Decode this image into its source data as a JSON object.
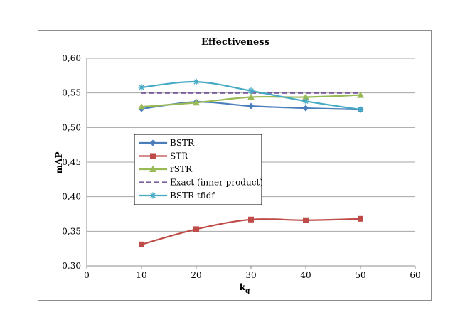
{
  "chart_data": {
    "type": "line",
    "title": "Effectiveness",
    "xlabel": "k",
    "xlabel_sub": "q",
    "ylabel": "mAP",
    "xlim": [
      0,
      60
    ],
    "ylim": [
      0.3,
      0.6
    ],
    "x_ticks": [
      0,
      10,
      20,
      30,
      40,
      50,
      60
    ],
    "y_ticks": [
      0.3,
      0.35,
      0.4,
      0.45,
      0.5,
      0.55,
      0.6
    ],
    "x_tick_labels": [
      "0",
      "10",
      "20",
      "30",
      "40",
      "50",
      "60"
    ],
    "y_tick_labels": [
      "0,30",
      "0,35",
      "0,40",
      "0,45",
      "0,50",
      "0,55",
      "0,60"
    ],
    "grid": "horizontal",
    "legend_position": "center-left",
    "x": [
      10,
      20,
      30,
      40,
      50
    ],
    "series": [
      {
        "name": "BSTR",
        "values": [
          0.527,
          0.537,
          0.531,
          0.528,
          0.526
        ],
        "color": "#4a7ebb",
        "marker": "diamond",
        "dash": "solid"
      },
      {
        "name": "STR",
        "values": [
          0.331,
          0.353,
          0.367,
          0.366,
          0.368
        ],
        "color": "#be4b48",
        "marker": "square",
        "dash": "solid"
      },
      {
        "name": "rSTR",
        "values": [
          0.53,
          0.536,
          0.544,
          0.544,
          0.547
        ],
        "color": "#98b954",
        "marker": "triangle",
        "dash": "solid"
      },
      {
        "name": "Exact (inner product)",
        "values": [
          0.55,
          0.55,
          0.55,
          0.55,
          0.55
        ],
        "color": "#7d60a0",
        "marker": "none",
        "dash": "dashed"
      },
      {
        "name": "BSTR tfidf",
        "values": [
          0.558,
          0.566,
          0.553,
          0.538,
          0.526
        ],
        "color": "#46aac5",
        "marker": "asterisk",
        "dash": "solid"
      }
    ]
  }
}
